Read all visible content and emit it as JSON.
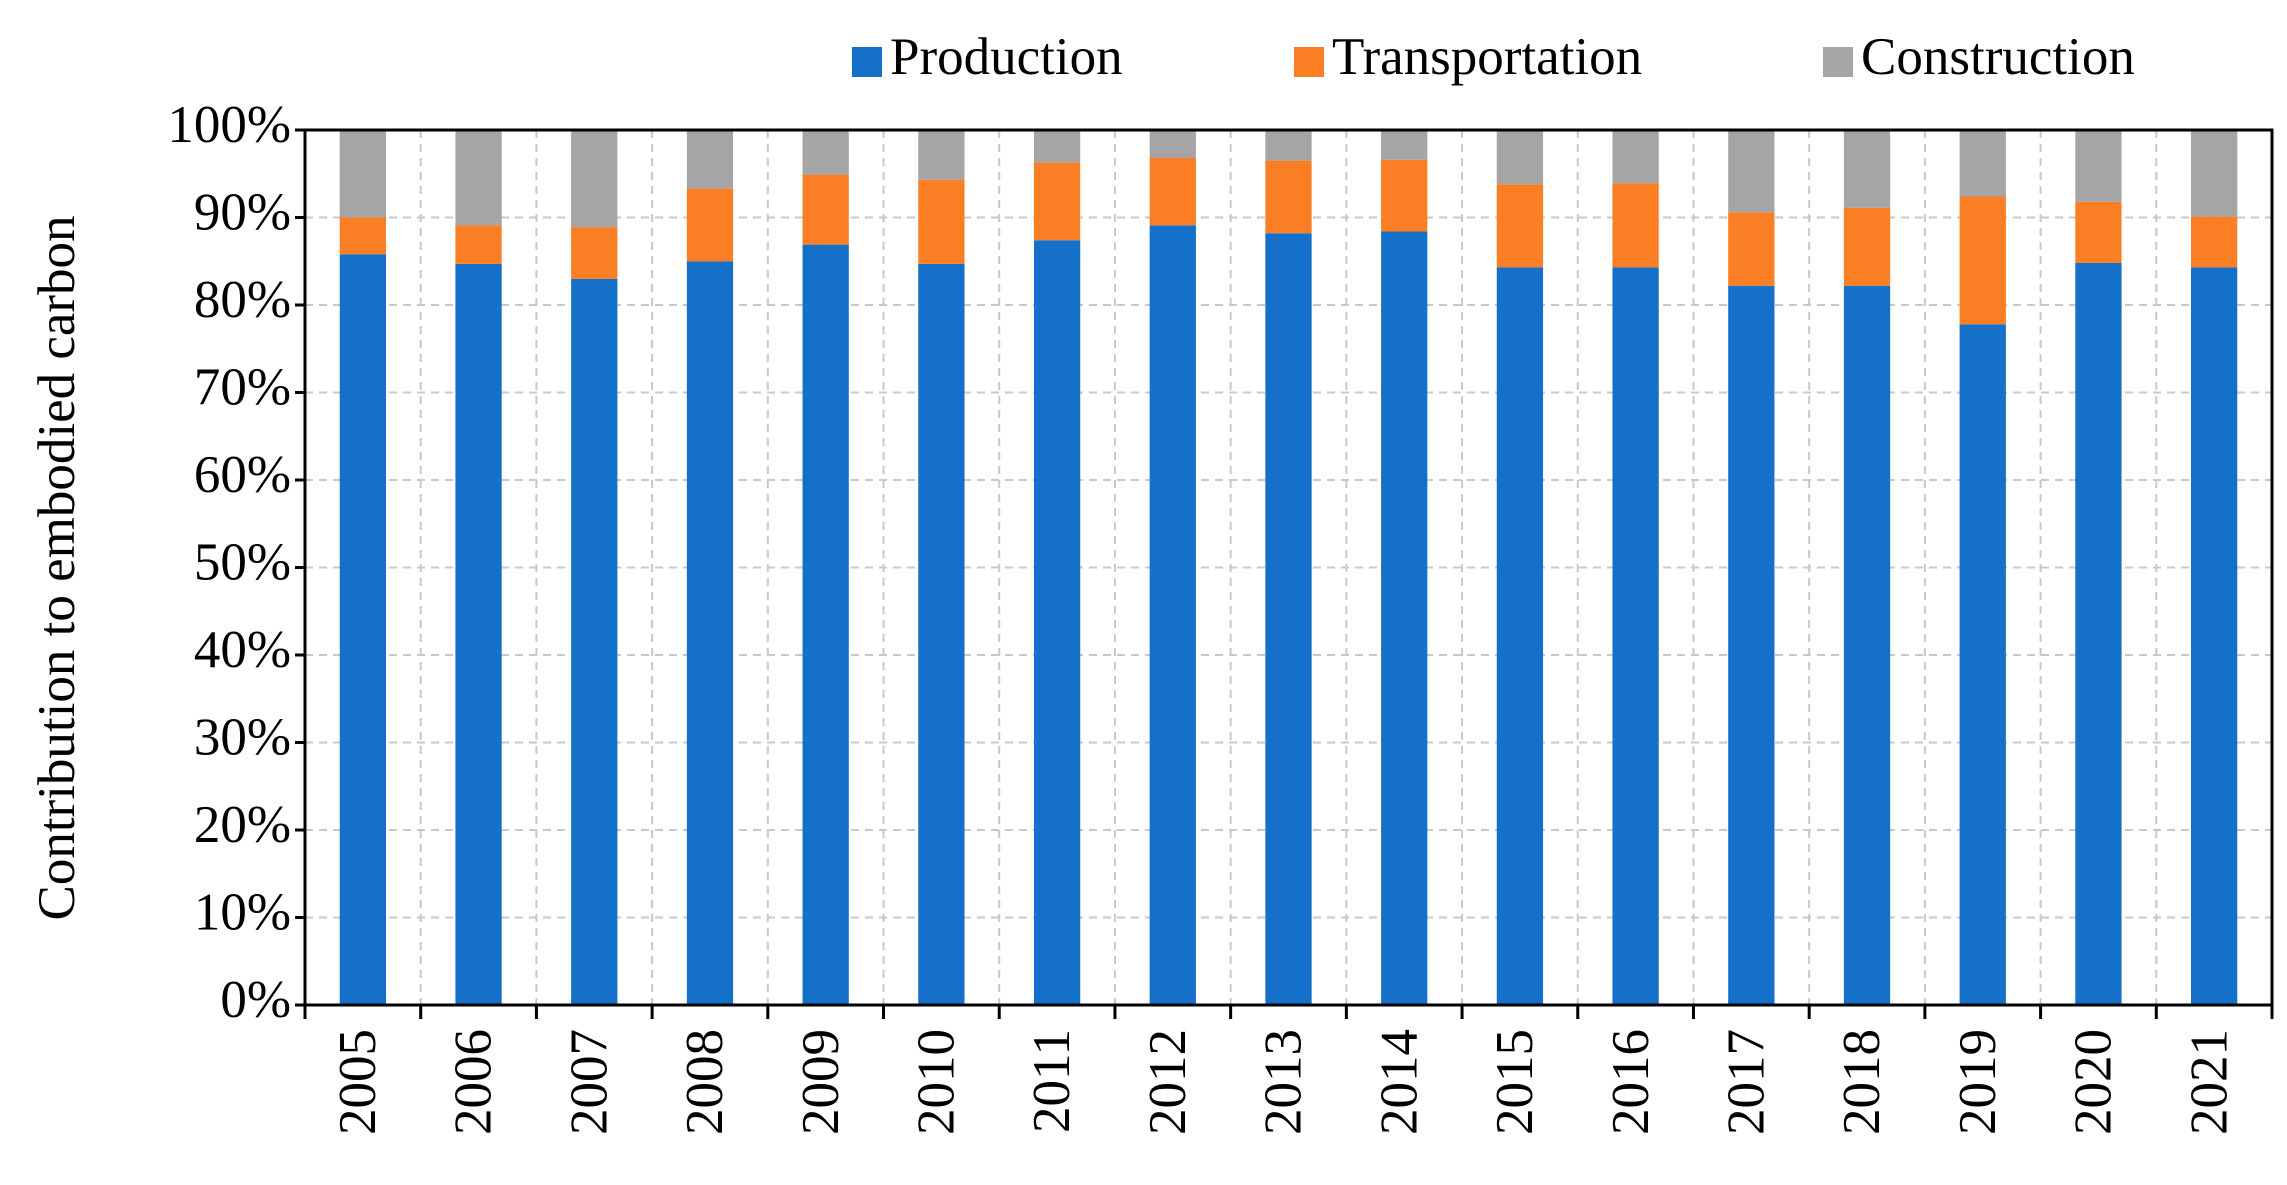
{
  "chart_data": {
    "type": "stacked_bar",
    "y_axis_label": "Contribution to embodied carbon",
    "categories": [
      "2005",
      "2006",
      "2007",
      "2008",
      "2009",
      "2010",
      "2011",
      "2012",
      "2013",
      "2014",
      "2015",
      "2016",
      "2017",
      "2018",
      "2019",
      "2020",
      "2021"
    ],
    "series": [
      {
        "name": "Production",
        "color": "#1570c9",
        "values": [
          85.8,
          84.7,
          83.0,
          85.0,
          86.9,
          84.7,
          87.4,
          89.1,
          88.2,
          88.4,
          84.3,
          84.3,
          82.2,
          82.2,
          77.8,
          84.8,
          84.3
        ]
      },
      {
        "name": "Transportation",
        "color": "#fa7f24",
        "values": [
          4.2,
          4.4,
          5.9,
          8.3,
          8.0,
          9.6,
          8.9,
          7.7,
          8.3,
          8.2,
          9.5,
          9.6,
          8.4,
          8.9,
          14.6,
          7.0,
          5.8
        ]
      },
      {
        "name": "Construction",
        "color": "#a5a5a5",
        "values": [
          10.0,
          10.9,
          11.1,
          6.7,
          5.1,
          5.7,
          3.7,
          3.2,
          3.5,
          3.4,
          6.2,
          6.1,
          9.4,
          8.9,
          7.6,
          8.2,
          9.9
        ]
      }
    ],
    "ylim": [
      0,
      100
    ],
    "yticks": [
      {
        "value": 0,
        "label": "0%"
      },
      {
        "value": 10,
        "label": "10%"
      },
      {
        "value": 20,
        "label": "20%"
      },
      {
        "value": 30,
        "label": "30%"
      },
      {
        "value": 40,
        "label": "40%"
      },
      {
        "value": 50,
        "label": "50%"
      },
      {
        "value": 60,
        "label": "60%"
      },
      {
        "value": 70,
        "label": "70%"
      },
      {
        "value": 80,
        "label": "80%"
      },
      {
        "value": 90,
        "label": "90%"
      },
      {
        "value": 100,
        "label": "100%"
      }
    ],
    "grid": true,
    "legend": "top"
  }
}
